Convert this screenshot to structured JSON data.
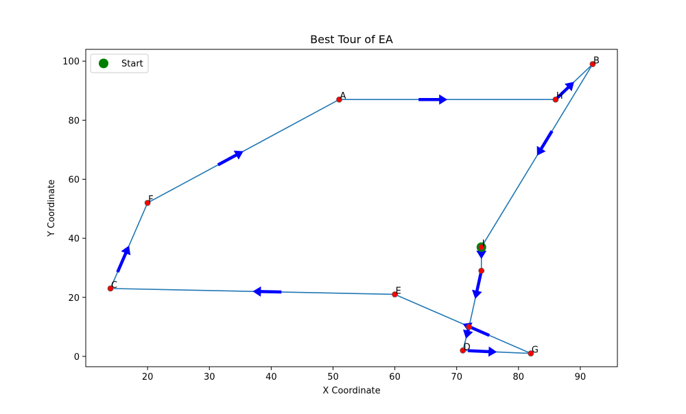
{
  "chart_data": {
    "type": "line",
    "title": "Best Tour of EA",
    "xlabel": "X Coordinate",
    "ylabel": "Y Coordinate",
    "xlim": [
      10,
      96
    ],
    "ylim": [
      -3.5,
      104
    ],
    "xticks": [
      20,
      30,
      40,
      50,
      60,
      70,
      80,
      90
    ],
    "yticks": [
      0,
      20,
      40,
      60,
      80,
      100
    ],
    "grid": false,
    "legend": {
      "placement": "upper-left",
      "entries": [
        {
          "label": "Start",
          "color": "#008000"
        }
      ]
    },
    "colors": {
      "path": "#1f77b4",
      "points": "#ff0000",
      "point_edge": "#555555",
      "arrows": "#0000ff",
      "start": "#008000"
    },
    "points": [
      {
        "label": "I",
        "x": 74,
        "y": 37
      },
      {
        "label": "",
        "x": 74,
        "y": 29
      },
      {
        "label": "",
        "x": 72,
        "y": 10
      },
      {
        "label": "D",
        "x": 71,
        "y": 2
      },
      {
        "label": "G",
        "x": 82,
        "y": 1
      },
      {
        "label": "E",
        "x": 60,
        "y": 21
      },
      {
        "label": "C",
        "x": 14,
        "y": 23
      },
      {
        "label": "F",
        "x": 20,
        "y": 52
      },
      {
        "label": "A",
        "x": 51,
        "y": 87
      },
      {
        "label": "H",
        "x": 86,
        "y": 87
      },
      {
        "label": "B",
        "x": 92,
        "y": 99
      }
    ],
    "tour": [
      0,
      1,
      2,
      3,
      4,
      5,
      6,
      7,
      8,
      9,
      10,
      0
    ],
    "start_index": 0
  }
}
